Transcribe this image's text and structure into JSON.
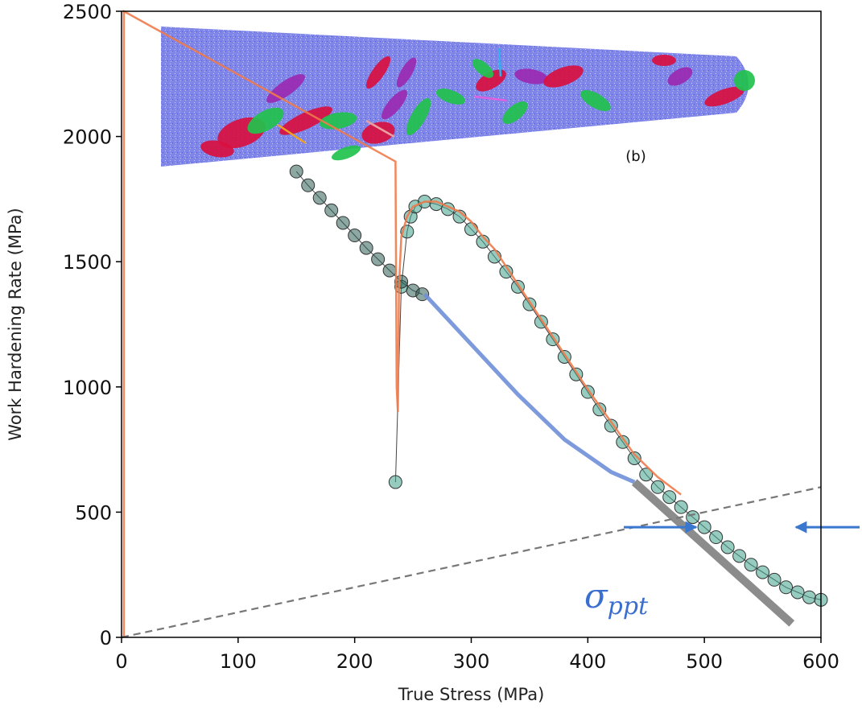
{
  "chart_data": {
    "type": "line",
    "title": "",
    "xlabel": "True Stress (MPa)",
    "ylabel": "Work Hardening Rate (MPa)",
    "xlim": [
      0,
      600
    ],
    "ylim": [
      0,
      2500
    ],
    "xticks": [
      "0",
      "100",
      "200",
      "300",
      "400",
      "500",
      "600"
    ],
    "yticks": [
      "0",
      "500",
      "1000",
      "1500",
      "2000",
      "2500"
    ],
    "grid": false,
    "inset_label": "(b)",
    "annotation": "σppt",
    "annotation_arrow_targets_x": [
      493,
      573
    ],
    "series": [
      {
        "style": "markers-line",
        "color": "#3fa08a",
        "x": [
          235,
          240,
          245,
          248,
          252,
          260,
          270,
          280,
          290,
          300,
          310,
          320,
          330,
          340,
          350,
          360,
          370,
          380,
          390,
          400,
          410,
          420,
          430,
          440,
          450,
          460,
          470,
          480,
          490,
          500,
          510,
          520,
          530,
          540,
          550,
          560,
          570,
          580,
          590,
          600
        ],
        "y": [
          620,
          1400,
          1620,
          1680,
          1720,
          1740,
          1730,
          1710,
          1680,
          1630,
          1580,
          1520,
          1460,
          1400,
          1330,
          1260,
          1190,
          1120,
          1050,
          980,
          910,
          845,
          780,
          715,
          650,
          600,
          560,
          520,
          480,
          440,
          400,
          360,
          325,
          290,
          260,
          230,
          200,
          180,
          160,
          150
        ]
      },
      {
        "style": "markers-line",
        "color": "#2f5f55",
        "x": [
          150,
          160,
          170,
          180,
          190,
          200,
          210,
          220,
          230,
          240,
          250,
          258
        ],
        "y": [
          1860,
          1805,
          1755,
          1705,
          1655,
          1605,
          1555,
          1510,
          1465,
          1420,
          1385,
          1370
        ]
      },
      {
        "style": "line",
        "color": "#f07a4a",
        "x": [
          2,
          2,
          235,
          236,
          237,
          238,
          240,
          245,
          250,
          260,
          270,
          280,
          290,
          300,
          310,
          320,
          330,
          340,
          350,
          360,
          380,
          400,
          420,
          440,
          460,
          480
        ],
        "y": [
          0,
          2500,
          1900,
          1000,
          900,
          1400,
          1600,
          1680,
          1720,
          1740,
          1740,
          1720,
          1700,
          1660,
          1600,
          1550,
          1480,
          1410,
          1340,
          1270,
          1130,
          990,
          860,
          730,
          640,
          570
        ]
      },
      {
        "style": "line",
        "color": "#6f8fd8",
        "x": [
          260,
          300,
          340,
          380,
          420,
          440
        ],
        "y": [
          1370,
          1170,
          970,
          790,
          660,
          620
        ]
      },
      {
        "style": "fit-line",
        "color": "#8c8c8c",
        "x": [
          440,
          575
        ],
        "y": [
          620,
          55
        ]
      },
      {
        "style": "dashed-line",
        "color": "#777777",
        "x": [
          0,
          600
        ],
        "y": [
          0,
          600
        ]
      }
    ]
  },
  "colors": {
    "inset_background": "#7f86e8",
    "inset_red": "#d81040",
    "inset_green": "#21c24c",
    "inset_purple": "#9a2ab0",
    "arrow": "#3a78d0"
  }
}
